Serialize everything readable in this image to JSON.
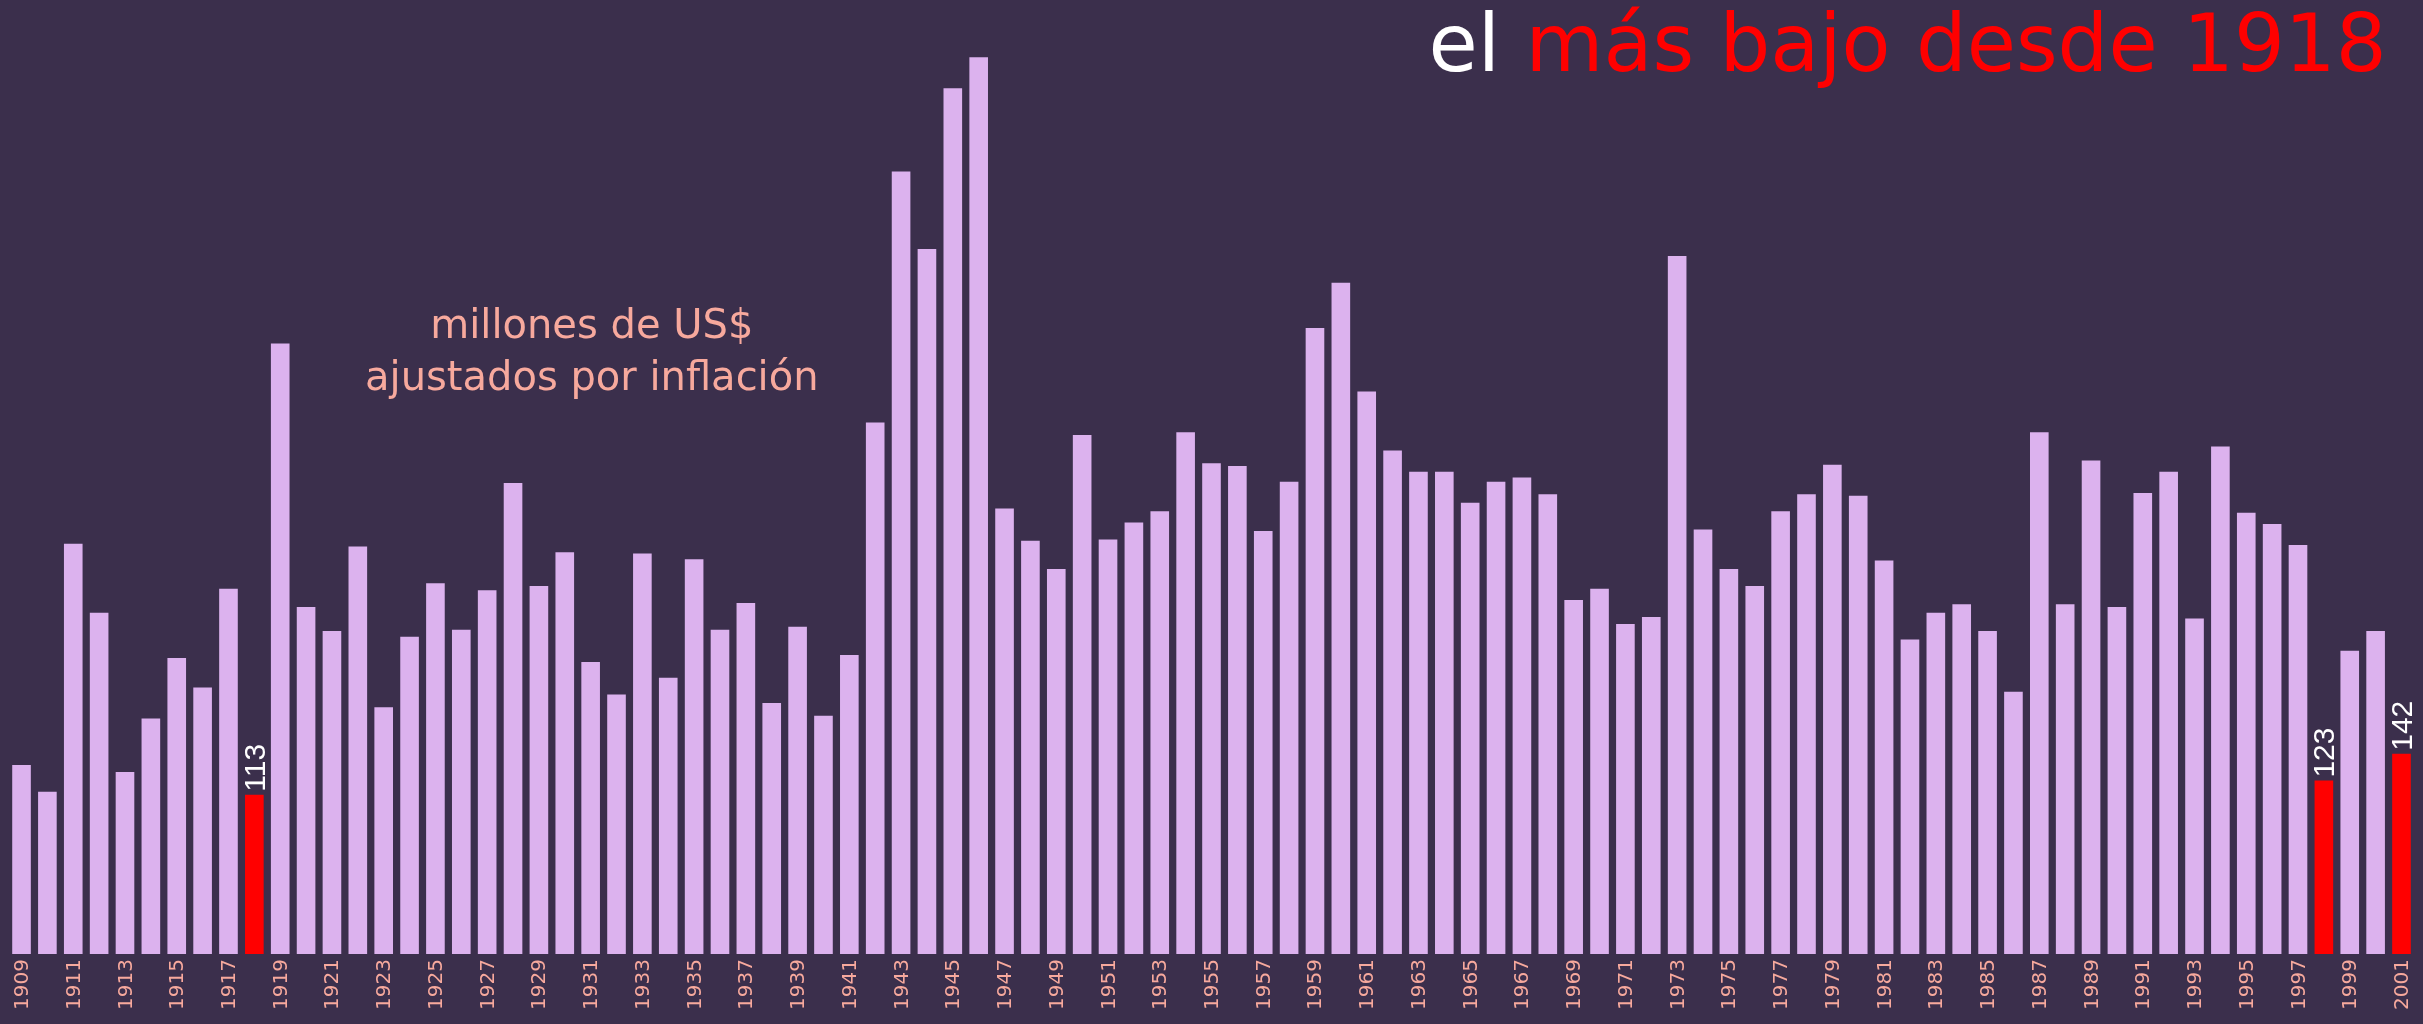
{
  "chart_data": {
    "type": "bar",
    "title": "el más bajo desde 1918",
    "annotations": [
      "millones de US$ ajustados por inflación"
    ],
    "categories": [
      "1909",
      null,
      "1911",
      null,
      "1913",
      null,
      "1915",
      null,
      "1917",
      null,
      "1919",
      null,
      "1921",
      null,
      "1923",
      null,
      "1925",
      null,
      "1927",
      null,
      "1929",
      null,
      "1931",
      null,
      "1933",
      null,
      "1935",
      null,
      "1937",
      null,
      "1939",
      null,
      "1941",
      null,
      "1943",
      null,
      "1945",
      null,
      "1947",
      null,
      "1949",
      null,
      "1951",
      null,
      "1953",
      null,
      "1955",
      null,
      "1957",
      null,
      "1959",
      null,
      "1961",
      null,
      "1963",
      null,
      "1965",
      null,
      "1967",
      null,
      "1969",
      null,
      "1971",
      null,
      "1973",
      null,
      "1975",
      null,
      "1977",
      null,
      "1979",
      null,
      "1981",
      null,
      "1983",
      null,
      "1985",
      null,
      "1987",
      null,
      "1989",
      null,
      "1991",
      null,
      "1993",
      null,
      "1995",
      null,
      "1997",
      null,
      "1999",
      null,
      "2001"
    ],
    "values": [
      134,
      115,
      291,
      242,
      129,
      167,
      210,
      189,
      259,
      113,
      433,
      246,
      229,
      289,
      175,
      225,
      263,
      230,
      258,
      334,
      261,
      285,
      207,
      184,
      284,
      196,
      280,
      230,
      249,
      178,
      232,
      169,
      212,
      377,
      555,
      500,
      614,
      636,
      316,
      293,
      273,
      368,
      294,
      306,
      314,
      370,
      348,
      346,
      300,
      335,
      444,
      476,
      399,
      357,
      342,
      342,
      320,
      335,
      338,
      326,
      251,
      259,
      234,
      239,
      495,
      301,
      273,
      261,
      314,
      326,
      347,
      325,
      279,
      223,
      242,
      248,
      229,
      186,
      370,
      248,
      350,
      246,
      327,
      342,
      238,
      360,
      313,
      305,
      290,
      123,
      215,
      229,
      142
    ],
    "colors": [
      "#dcb2ee",
      "#dcb2ee",
      "#dcb2ee",
      "#dcb2ee",
      "#dcb2ee",
      "#dcb2ee",
      "#dcb2ee",
      "#dcb2ee",
      "#dcb2ee",
      "#ff0000",
      "#dcb2ee",
      "#dcb2ee",
      "#dcb2ee",
      "#dcb2ee",
      "#dcb2ee",
      "#dcb2ee",
      "#dcb2ee",
      "#dcb2ee",
      "#dcb2ee",
      "#dcb2ee",
      "#dcb2ee",
      "#dcb2ee",
      "#dcb2ee",
      "#dcb2ee",
      "#dcb2ee",
      "#dcb2ee",
      "#dcb2ee",
      "#dcb2ee",
      "#dcb2ee",
      "#dcb2ee",
      "#dcb2ee",
      "#dcb2ee",
      "#dcb2ee",
      "#dcb2ee",
      "#dcb2ee",
      "#dcb2ee",
      "#dcb2ee",
      "#dcb2ee",
      "#dcb2ee",
      "#dcb2ee",
      "#dcb2ee",
      "#dcb2ee",
      "#dcb2ee",
      "#dcb2ee",
      "#dcb2ee",
      "#dcb2ee",
      "#dcb2ee",
      "#dcb2ee",
      "#dcb2ee",
      "#dcb2ee",
      "#dcb2ee",
      "#dcb2ee",
      "#dcb2ee",
      "#dcb2ee",
      "#dcb2ee",
      "#dcb2ee",
      "#dcb2ee",
      "#dcb2ee",
      "#dcb2ee",
      "#dcb2ee",
      "#dcb2ee",
      "#dcb2ee",
      "#dcb2ee",
      "#dcb2ee",
      "#dcb2ee",
      "#dcb2ee",
      "#dcb2ee",
      "#dcb2ee",
      "#dcb2ee",
      "#dcb2ee",
      "#dcb2ee",
      "#dcb2ee",
      "#dcb2ee",
      "#dcb2ee",
      "#dcb2ee",
      "#dcb2ee",
      "#dcb2ee",
      "#dcb2ee",
      "#dcb2ee",
      "#dcb2ee",
      "#dcb2ee",
      "#dcb2ee",
      "#dcb2ee",
      "#dcb2ee",
      "#dcb2ee",
      "#dcb2ee",
      "#dcb2ee",
      "#dcb2ee",
      "#dcb2ee",
      "#ff0000",
      "#dcb2ee",
      "#dcb2ee",
      "#ff0000"
    ],
    "value_labels": [
      null,
      null,
      null,
      null,
      null,
      null,
      null,
      null,
      null,
      "113",
      null,
      null,
      null,
      null,
      null,
      null,
      null,
      null,
      null,
      null,
      null,
      null,
      null,
      null,
      null,
      null,
      null,
      null,
      null,
      null,
      null,
      null,
      null,
      null,
      null,
      null,
      null,
      null,
      null,
      null,
      null,
      null,
      null,
      null,
      null,
      null,
      null,
      null,
      null,
      null,
      null,
      null,
      null,
      null,
      null,
      null,
      null,
      null,
      null,
      null,
      null,
      null,
      null,
      null,
      null,
      null,
      null,
      null,
      null,
      null,
      null,
      null,
      null,
      null,
      null,
      null,
      null,
      null,
      null,
      null,
      null,
      null,
      null,
      null,
      null,
      null,
      null,
      null,
      null,
      "123",
      null,
      null,
      "142"
    ],
    "legend": false
  }
}
